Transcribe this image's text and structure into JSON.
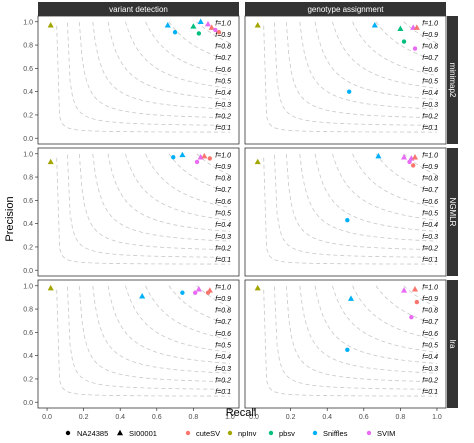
{
  "chart_data": {
    "type": "scatter",
    "xlabel": "Recall",
    "ylabel": "Precision",
    "xlim": [
      0,
      1
    ],
    "ylim": [
      0,
      1
    ],
    "x_ticks": [
      "0.0",
      "0.2",
      "0.4",
      "0.6",
      "0.8",
      "1.0"
    ],
    "y_ticks": [
      "0.0",
      "0.2",
      "0.4",
      "0.6",
      "0.8",
      "1.0"
    ],
    "grid": false,
    "legend_position": "bottom",
    "facet_columns": [
      "variant detection",
      "genotype assignment"
    ],
    "facet_rows": [
      "minimap2",
      "NGMLR",
      "lra"
    ],
    "f_contours": [
      1.0,
      0.9,
      0.8,
      0.7,
      0.6,
      0.5,
      0.4,
      0.3,
      0.2,
      0.1
    ],
    "f_label_prefix": "f=",
    "shape_legend": [
      {
        "label": "NA24385",
        "shape": "circle"
      },
      {
        "label": "SI00001",
        "shape": "triangle"
      }
    ],
    "tools": [
      {
        "name": "cuteSV",
        "color": "#F8766D"
      },
      {
        "name": "npInv",
        "color": "#A3A500"
      },
      {
        "name": "pbsv",
        "color": "#00BF7D"
      },
      {
        "name": "Sniffles",
        "color": "#00B0F6"
      },
      {
        "name": "SVIM",
        "color": "#E76BF3"
      }
    ],
    "panels": [
      {
        "row": 0,
        "col": 0,
        "points": [
          {
            "tool": "npInv",
            "sample": "SI00001",
            "x": 0.02,
            "y": 0.97
          },
          {
            "tool": "Sniffles",
            "sample": "SI00001",
            "x": 0.66,
            "y": 0.97
          },
          {
            "tool": "Sniffles",
            "sample": "NA24385",
            "x": 0.7,
            "y": 0.91
          },
          {
            "tool": "pbsv",
            "sample": "SI00001",
            "x": 0.8,
            "y": 0.96
          },
          {
            "tool": "pbsv",
            "sample": "NA24385",
            "x": 0.83,
            "y": 0.9
          },
          {
            "tool": "Sniffles",
            "sample": "SI00001",
            "x": 0.84,
            "y": 1.0
          },
          {
            "tool": "SVIM",
            "sample": "SI00001",
            "x": 0.88,
            "y": 0.98
          },
          {
            "tool": "cuteSV",
            "sample": "SI00001",
            "x": 0.9,
            "y": 0.95
          },
          {
            "tool": "SVIM",
            "sample": "NA24385",
            "x": 0.92,
            "y": 0.93
          },
          {
            "tool": "cuteSV",
            "sample": "NA24385",
            "x": 0.94,
            "y": 0.91
          }
        ]
      },
      {
        "row": 0,
        "col": 1,
        "points": [
          {
            "tool": "npInv",
            "sample": "SI00001",
            "x": 0.02,
            "y": 0.97
          },
          {
            "tool": "Sniffles",
            "sample": "SI00001",
            "x": 0.66,
            "y": 0.97
          },
          {
            "tool": "pbsv",
            "sample": "SI00001",
            "x": 0.8,
            "y": 0.94
          },
          {
            "tool": "SVIM",
            "sample": "SI00001",
            "x": 0.87,
            "y": 0.95
          },
          {
            "tool": "cuteSV",
            "sample": "SI00001",
            "x": 0.89,
            "y": 0.95
          },
          {
            "tool": "pbsv",
            "sample": "NA24385",
            "x": 0.82,
            "y": 0.83
          },
          {
            "tool": "SVIM",
            "sample": "NA24385",
            "x": 0.88,
            "y": 0.77
          },
          {
            "tool": "Sniffles",
            "sample": "NA24385",
            "x": 0.52,
            "y": 0.4
          }
        ]
      },
      {
        "row": 1,
        "col": 0,
        "points": [
          {
            "tool": "npInv",
            "sample": "SI00001",
            "x": 0.02,
            "y": 0.93
          },
          {
            "tool": "Sniffles",
            "sample": "NA24385",
            "x": 0.69,
            "y": 0.97
          },
          {
            "tool": "Sniffles",
            "sample": "SI00001",
            "x": 0.74,
            "y": 0.99
          },
          {
            "tool": "SVIM",
            "sample": "SI00001",
            "x": 0.84,
            "y": 0.97
          },
          {
            "tool": "SVIM",
            "sample": "NA24385",
            "x": 0.82,
            "y": 0.93
          },
          {
            "tool": "cuteSV",
            "sample": "SI00001",
            "x": 0.86,
            "y": 0.98
          },
          {
            "tool": "cuteSV",
            "sample": "NA24385",
            "x": 0.89,
            "y": 0.96
          }
        ]
      },
      {
        "row": 1,
        "col": 1,
        "points": [
          {
            "tool": "npInv",
            "sample": "SI00001",
            "x": 0.02,
            "y": 0.93
          },
          {
            "tool": "Sniffles",
            "sample": "SI00001",
            "x": 0.68,
            "y": 0.98
          },
          {
            "tool": "SVIM",
            "sample": "SI00001",
            "x": 0.82,
            "y": 0.97
          },
          {
            "tool": "SVIM",
            "sample": "SI00001",
            "x": 0.86,
            "y": 0.96
          },
          {
            "tool": "cuteSV",
            "sample": "SI00001",
            "x": 0.88,
            "y": 0.97
          },
          {
            "tool": "SVIM",
            "sample": "NA24385",
            "x": 0.85,
            "y": 0.93
          },
          {
            "tool": "cuteSV",
            "sample": "NA24385",
            "x": 0.87,
            "y": 0.9
          },
          {
            "tool": "Sniffles",
            "sample": "NA24385",
            "x": 0.51,
            "y": 0.43
          }
        ]
      },
      {
        "row": 2,
        "col": 0,
        "points": [
          {
            "tool": "npInv",
            "sample": "SI00001",
            "x": 0.02,
            "y": 0.98
          },
          {
            "tool": "Sniffles",
            "sample": "SI00001",
            "x": 0.52,
            "y": 0.91
          },
          {
            "tool": "Sniffles",
            "sample": "NA24385",
            "x": 0.74,
            "y": 0.94
          },
          {
            "tool": "SVIM",
            "sample": "SI00001",
            "x": 0.83,
            "y": 0.97
          },
          {
            "tool": "SVIM",
            "sample": "NA24385",
            "x": 0.81,
            "y": 0.94
          },
          {
            "tool": "cuteSV",
            "sample": "SI00001",
            "x": 0.89,
            "y": 0.96
          },
          {
            "tool": "cuteSV",
            "sample": "NA24385",
            "x": 0.88,
            "y": 0.94
          }
        ]
      },
      {
        "row": 2,
        "col": 1,
        "points": [
          {
            "tool": "npInv",
            "sample": "SI00001",
            "x": 0.02,
            "y": 0.98
          },
          {
            "tool": "Sniffles",
            "sample": "SI00001",
            "x": 0.53,
            "y": 0.89
          },
          {
            "tool": "SVIM",
            "sample": "SI00001",
            "x": 0.82,
            "y": 0.96
          },
          {
            "tool": "cuteSV",
            "sample": "SI00001",
            "x": 0.88,
            "y": 0.97
          },
          {
            "tool": "cuteSV",
            "sample": "NA24385",
            "x": 0.89,
            "y": 0.86
          },
          {
            "tool": "SVIM",
            "sample": "NA24385",
            "x": 0.86,
            "y": 0.73
          },
          {
            "tool": "Sniffles",
            "sample": "NA24385",
            "x": 0.51,
            "y": 0.45
          }
        ]
      }
    ]
  }
}
